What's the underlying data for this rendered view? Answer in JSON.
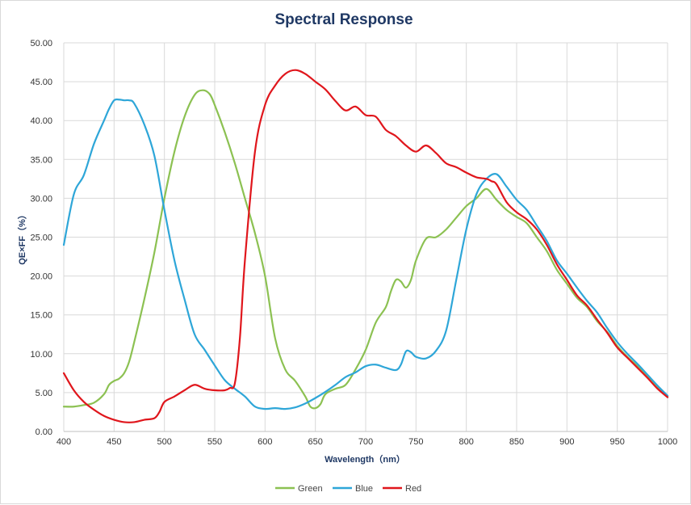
{
  "chart_data": {
    "type": "line",
    "title": "Spectral Response",
    "xlabel": "Wavelength（nm）",
    "ylabel": "QE×FF（%）",
    "xlim": [
      400,
      1000
    ],
    "ylim": [
      0,
      50
    ],
    "x_ticks": [
      "400",
      "450",
      "500",
      "550",
      "600",
      "650",
      "700",
      "750",
      "800",
      "850",
      "900",
      "950",
      "1000"
    ],
    "y_ticks": [
      "0.00",
      "5.00",
      "10.00",
      "15.00",
      "20.00",
      "25.00",
      "30.00",
      "35.00",
      "40.00",
      "45.00",
      "50.00"
    ],
    "grid": true,
    "legend_position": "bottom",
    "series": [
      {
        "name": "Green",
        "color": "#8cc152",
        "points": [
          [
            400,
            3.2
          ],
          [
            410,
            3.2
          ],
          [
            420,
            3.4
          ],
          [
            430,
            3.7
          ],
          [
            440,
            4.8
          ],
          [
            445,
            6.0
          ],
          [
            450,
            6.5
          ],
          [
            455,
            6.8
          ],
          [
            460,
            7.5
          ],
          [
            465,
            9.0
          ],
          [
            470,
            11.5
          ],
          [
            480,
            17
          ],
          [
            490,
            23
          ],
          [
            500,
            30
          ],
          [
            510,
            36
          ],
          [
            520,
            40.5
          ],
          [
            530,
            43.3
          ],
          [
            538,
            43.9
          ],
          [
            545,
            43.4
          ],
          [
            550,
            42.0
          ],
          [
            560,
            38.5
          ],
          [
            570,
            34.5
          ],
          [
            580,
            30
          ],
          [
            590,
            25.5
          ],
          [
            600,
            20
          ],
          [
            610,
            12
          ],
          [
            620,
            8
          ],
          [
            630,
            6.5
          ],
          [
            640,
            4.5
          ],
          [
            645,
            3.2
          ],
          [
            650,
            3.0
          ],
          [
            655,
            3.5
          ],
          [
            660,
            4.8
          ],
          [
            670,
            5.5
          ],
          [
            680,
            6.0
          ],
          [
            690,
            8.0
          ],
          [
            700,
            10.5
          ],
          [
            710,
            14.0
          ],
          [
            720,
            16.0
          ],
          [
            725,
            18.0
          ],
          [
            730,
            19.5
          ],
          [
            735,
            19.3
          ],
          [
            740,
            18.5
          ],
          [
            745,
            19.5
          ],
          [
            750,
            22.0
          ],
          [
            760,
            24.8
          ],
          [
            770,
            25.0
          ],
          [
            780,
            26.0
          ],
          [
            790,
            27.5
          ],
          [
            800,
            29.0
          ],
          [
            810,
            30.0
          ],
          [
            820,
            31.2
          ],
          [
            830,
            29.8
          ],
          [
            840,
            28.5
          ],
          [
            850,
            27.6
          ],
          [
            860,
            26.8
          ],
          [
            870,
            25.0
          ],
          [
            880,
            23.2
          ],
          [
            890,
            20.8
          ],
          [
            900,
            19.0
          ],
          [
            910,
            17.2
          ],
          [
            920,
            16.0
          ],
          [
            930,
            14.2
          ],
          [
            940,
            12.8
          ],
          [
            950,
            11.0
          ],
          [
            960,
            9.6
          ],
          [
            970,
            8.4
          ],
          [
            980,
            7.1
          ],
          [
            990,
            5.7
          ],
          [
            1000,
            4.5
          ]
        ]
      },
      {
        "name": "Blue",
        "color": "#2ea6d8",
        "points": [
          [
            400,
            24.0
          ],
          [
            410,
            30.5
          ],
          [
            420,
            33.0
          ],
          [
            430,
            37.0
          ],
          [
            440,
            40.0
          ],
          [
            445,
            41.5
          ],
          [
            450,
            42.6
          ],
          [
            455,
            42.7
          ],
          [
            460,
            42.6
          ],
          [
            465,
            42.6
          ],
          [
            470,
            42.2
          ],
          [
            480,
            39.5
          ],
          [
            490,
            35.5
          ],
          [
            500,
            28.5
          ],
          [
            510,
            22.0
          ],
          [
            520,
            17.0
          ],
          [
            530,
            12.5
          ],
          [
            540,
            10.5
          ],
          [
            550,
            8.5
          ],
          [
            560,
            6.6
          ],
          [
            570,
            5.5
          ],
          [
            580,
            4.5
          ],
          [
            590,
            3.2
          ],
          [
            600,
            2.9
          ],
          [
            610,
            3.0
          ],
          [
            620,
            2.9
          ],
          [
            630,
            3.1
          ],
          [
            640,
            3.6
          ],
          [
            650,
            4.3
          ],
          [
            660,
            5.1
          ],
          [
            670,
            6.0
          ],
          [
            680,
            7.0
          ],
          [
            690,
            7.6
          ],
          [
            700,
            8.4
          ],
          [
            710,
            8.6
          ],
          [
            720,
            8.2
          ],
          [
            730,
            7.9
          ],
          [
            735,
            8.6
          ],
          [
            740,
            10.3
          ],
          [
            745,
            10.2
          ],
          [
            750,
            9.6
          ],
          [
            760,
            9.4
          ],
          [
            770,
            10.4
          ],
          [
            780,
            13.0
          ],
          [
            790,
            19.5
          ],
          [
            800,
            26.0
          ],
          [
            810,
            30.5
          ],
          [
            820,
            32.5
          ],
          [
            830,
            33.1
          ],
          [
            840,
            31.5
          ],
          [
            850,
            29.8
          ],
          [
            860,
            28.5
          ],
          [
            870,
            26.5
          ],
          [
            880,
            24.5
          ],
          [
            890,
            22.0
          ],
          [
            900,
            20.3
          ],
          [
            910,
            18.5
          ],
          [
            920,
            16.8
          ],
          [
            930,
            15.3
          ],
          [
            940,
            13.3
          ],
          [
            950,
            11.5
          ],
          [
            960,
            10.0
          ],
          [
            970,
            8.7
          ],
          [
            980,
            7.3
          ],
          [
            990,
            5.9
          ],
          [
            1000,
            4.6
          ]
        ]
      },
      {
        "name": "Red",
        "color": "#e0161c",
        "points": [
          [
            400,
            7.5
          ],
          [
            410,
            5.3
          ],
          [
            420,
            3.8
          ],
          [
            430,
            2.8
          ],
          [
            440,
            2.0
          ],
          [
            450,
            1.5
          ],
          [
            460,
            1.2
          ],
          [
            470,
            1.2
          ],
          [
            480,
            1.5
          ],
          [
            490,
            1.7
          ],
          [
            495,
            2.5
          ],
          [
            500,
            3.8
          ],
          [
            510,
            4.5
          ],
          [
            520,
            5.3
          ],
          [
            530,
            6.0
          ],
          [
            540,
            5.5
          ],
          [
            550,
            5.3
          ],
          [
            560,
            5.3
          ],
          [
            565,
            5.6
          ],
          [
            570,
            6.2
          ],
          [
            575,
            12
          ],
          [
            580,
            22
          ],
          [
            590,
            36
          ],
          [
            600,
            42
          ],
          [
            610,
            44.5
          ],
          [
            620,
            46.0
          ],
          [
            630,
            46.5
          ],
          [
            640,
            46.0
          ],
          [
            650,
            45.0
          ],
          [
            660,
            44.0
          ],
          [
            670,
            42.5
          ],
          [
            680,
            41.3
          ],
          [
            690,
            41.8
          ],
          [
            700,
            40.7
          ],
          [
            710,
            40.5
          ],
          [
            720,
            38.8
          ],
          [
            730,
            38.0
          ],
          [
            740,
            36.8
          ],
          [
            750,
            36.0
          ],
          [
            760,
            36.8
          ],
          [
            770,
            35.8
          ],
          [
            780,
            34.5
          ],
          [
            790,
            34.0
          ],
          [
            800,
            33.3
          ],
          [
            810,
            32.7
          ],
          [
            820,
            32.5
          ],
          [
            825,
            32.2
          ],
          [
            830,
            31.8
          ],
          [
            840,
            29.5
          ],
          [
            850,
            28.2
          ],
          [
            860,
            27.3
          ],
          [
            870,
            26.0
          ],
          [
            880,
            24.0
          ],
          [
            890,
            21.5
          ],
          [
            900,
            19.5
          ],
          [
            910,
            17.5
          ],
          [
            920,
            16.2
          ],
          [
            930,
            14.4
          ],
          [
            940,
            12.7
          ],
          [
            950,
            10.8
          ],
          [
            960,
            9.5
          ],
          [
            970,
            8.2
          ],
          [
            980,
            6.9
          ],
          [
            990,
            5.5
          ],
          [
            1000,
            4.4
          ]
        ]
      }
    ]
  }
}
